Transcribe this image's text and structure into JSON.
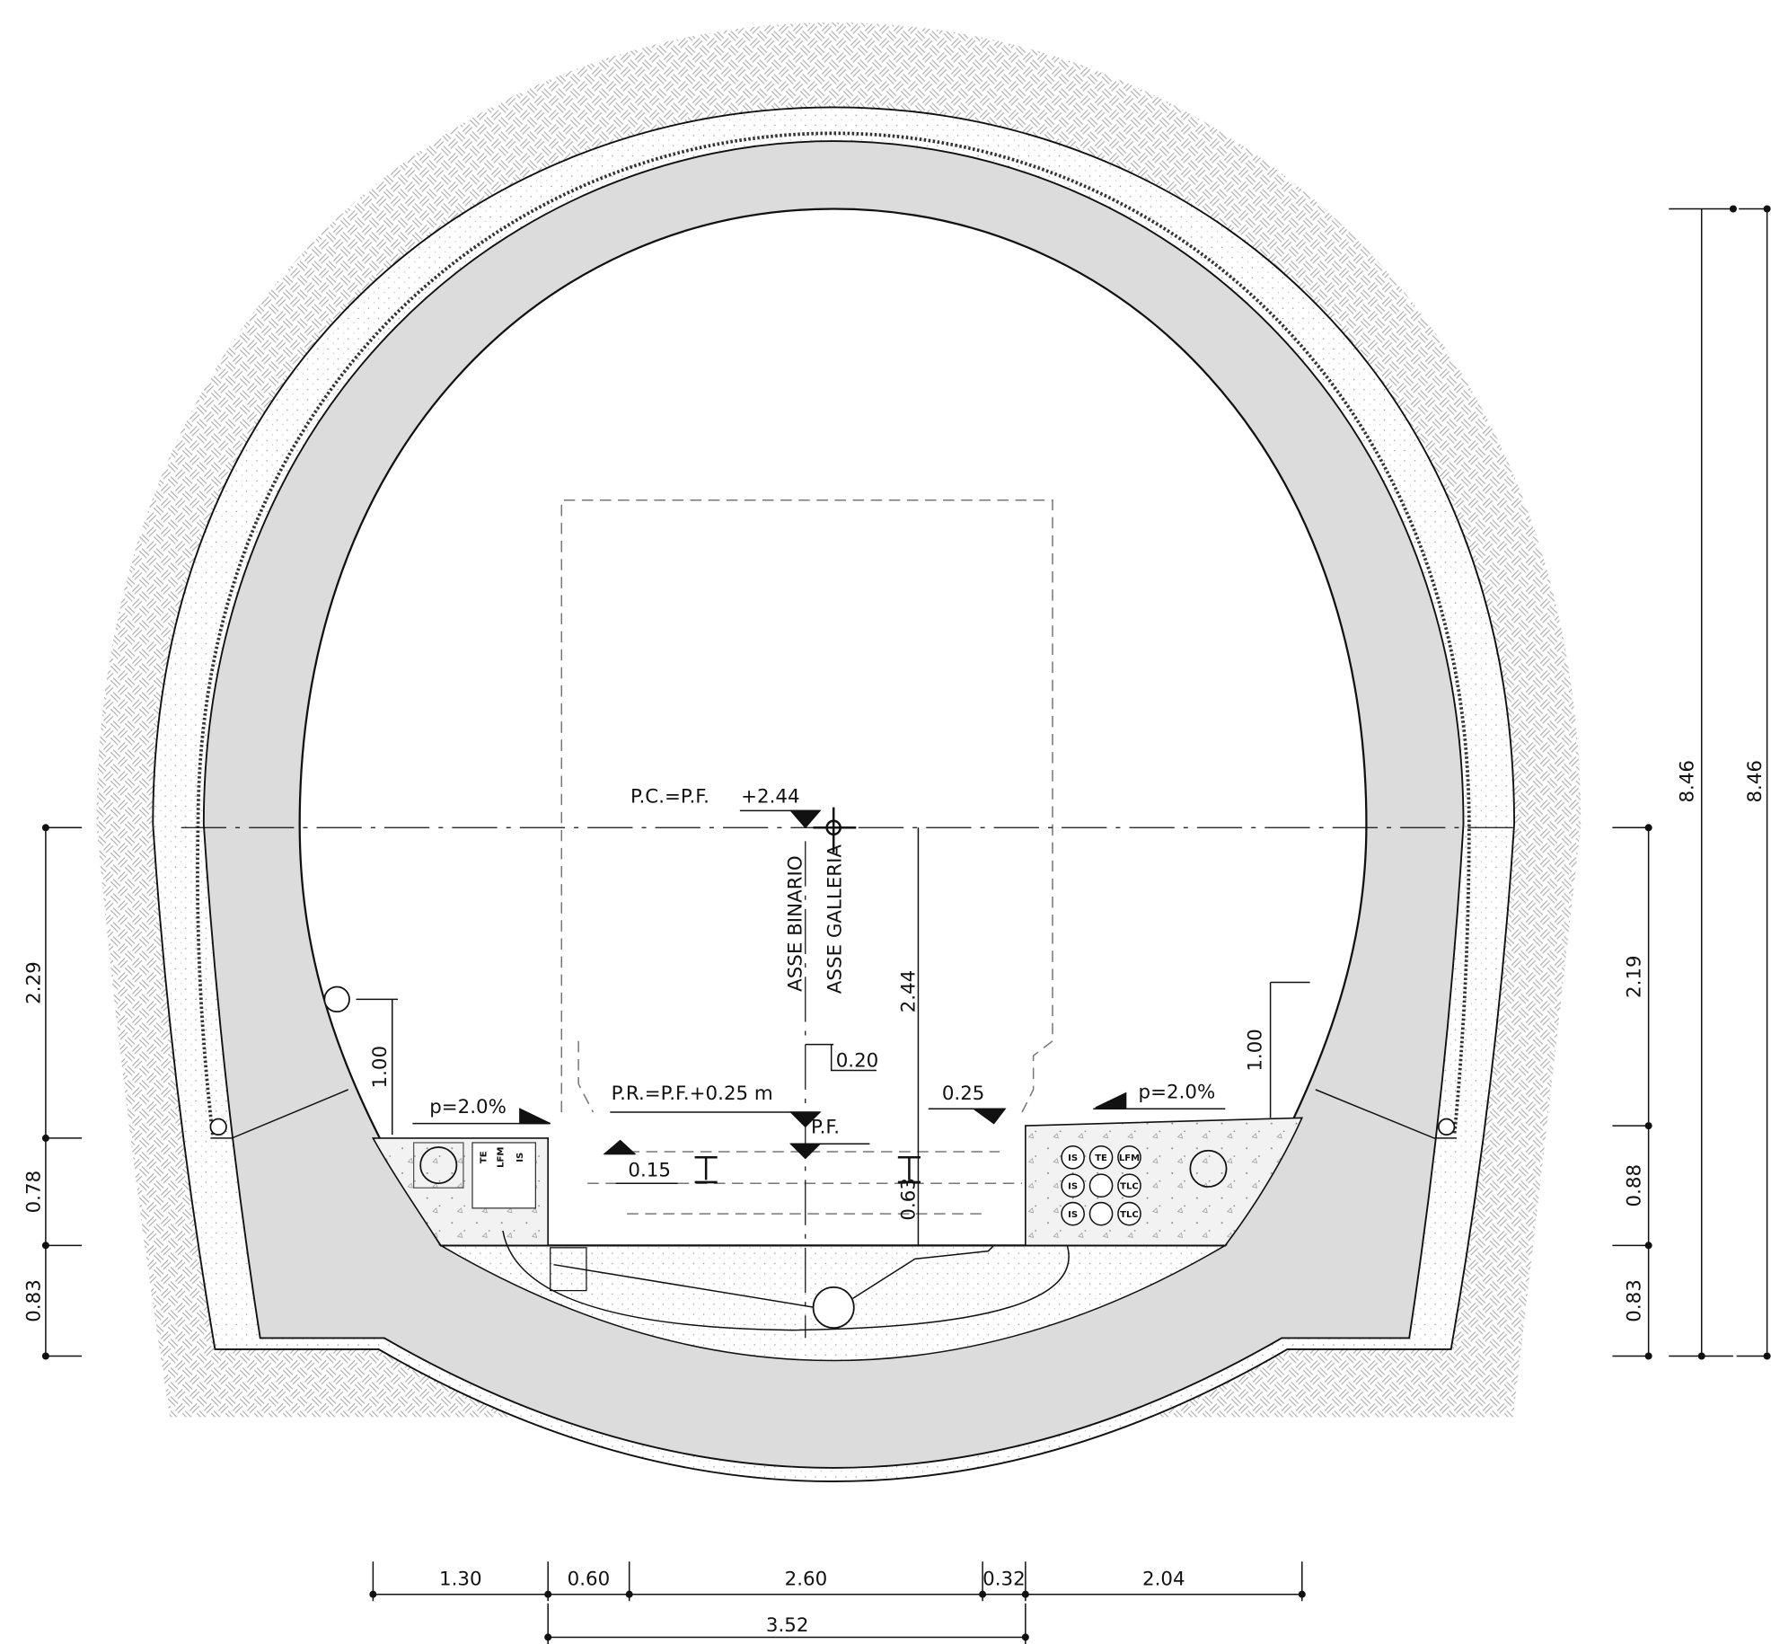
{
  "annotations": {
    "pc_label": "P.C.=P.F.",
    "pc_value": "+2.44",
    "pr_label": "P.R.=P.F.+0.25  m",
    "pf_label": "P.F.",
    "track_axis": "ASSE  BINARIO",
    "tunnel_axis": "ASSE  GALLERIA",
    "slope_left": "p=2.0%",
    "slope_right": "p=2.0%"
  },
  "dimensions": {
    "rail_height": "2.44",
    "gauge_offset": "0.20",
    "platform_step": "0.25",
    "rail_drop": "0.15",
    "ballast_depth": "0.63",
    "left_handrail": "1.00",
    "right_handrail": "1.00",
    "left": [
      "2.29",
      "0.78",
      "0.83"
    ],
    "right": [
      "2.19",
      "0.88",
      "0.83"
    ],
    "overall": [
      "8.46",
      "8.46"
    ],
    "bottom": [
      "1.30",
      "0.60",
      "2.60",
      "0.32",
      "2.04"
    ],
    "bottom_total": "3.52"
  },
  "ducts": {
    "left": [
      "TE",
      "LFM",
      "IS"
    ],
    "right": [
      "IS",
      "TE",
      "LFM",
      "IS",
      "TLC",
      "IS",
      "TLC"
    ]
  }
}
